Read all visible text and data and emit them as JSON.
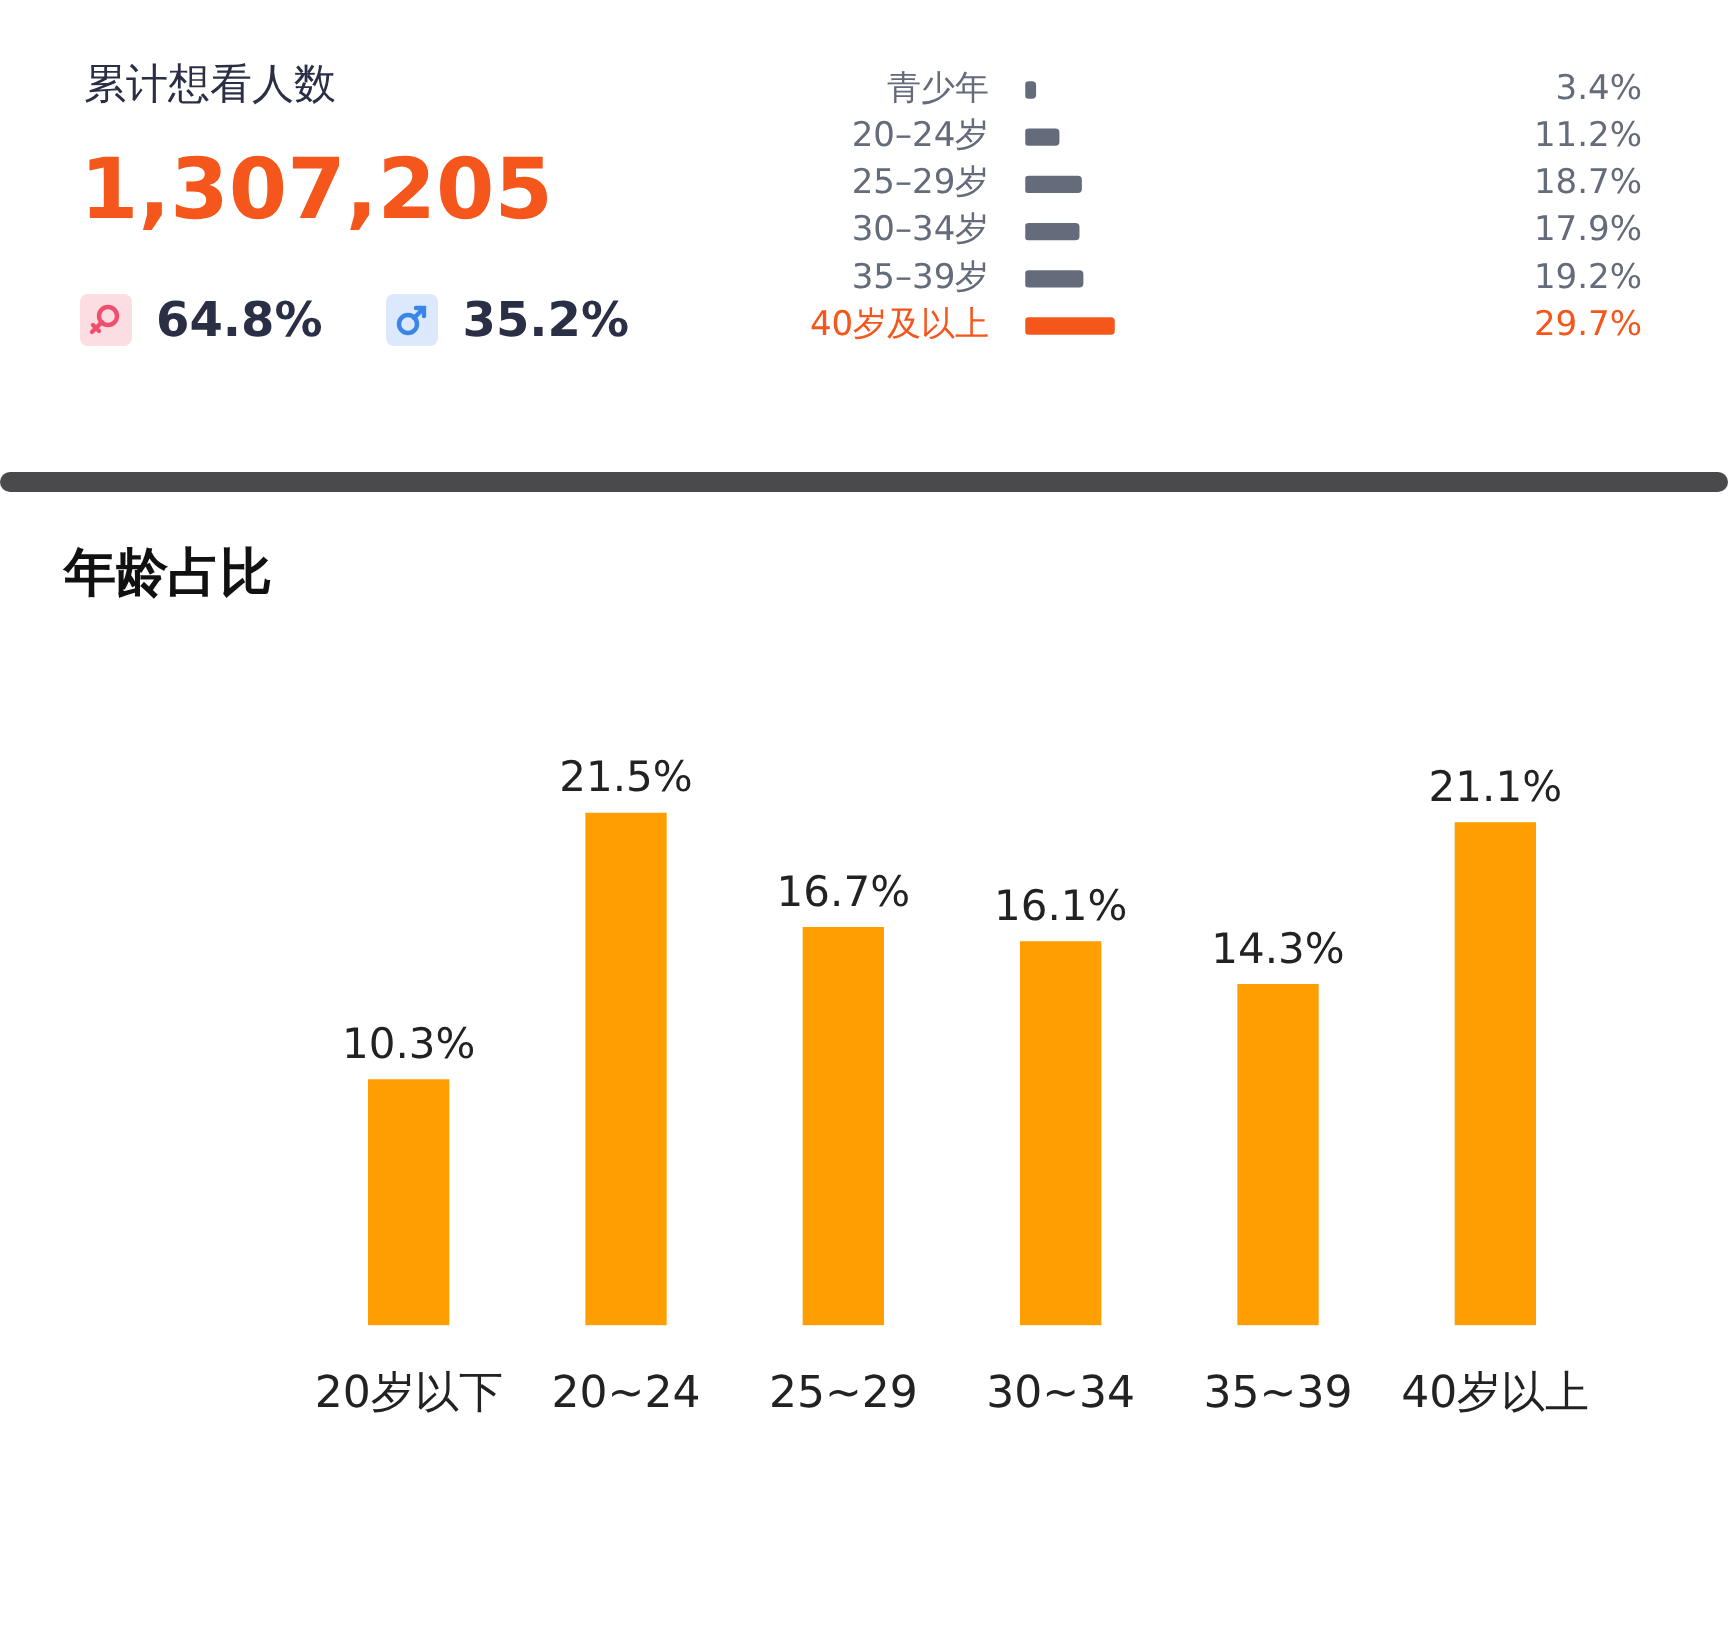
{
  "chart_data": [
    {
      "type": "other",
      "title": "累计想看人数",
      "annotations": [
        "1,307,205",
        "64.8%",
        "35.2%"
      ]
    },
    {
      "type": "bar",
      "orientation": "horizontal",
      "categories": [
        "青少年",
        "20–24岁",
        "25–29岁",
        "30–34岁",
        "35–39岁",
        "40岁及以上"
      ],
      "values": [
        3.4,
        11.2,
        18.7,
        17.9,
        19.2,
        29.7
      ],
      "colors": [
        "#646b7a",
        "#646b7a",
        "#646b7a",
        "#646b7a",
        "#646b7a",
        "#f4561c"
      ],
      "tick_labels": "y",
      "value_labels": [
        "3.4%",
        "11.2%",
        "18.7%",
        "17.9%",
        "19.2%",
        "29.7%"
      ]
    },
    {
      "type": "bar",
      "title": "年龄占比",
      "categories": [
        "20岁以下",
        "20~24",
        "25~29",
        "30~34",
        "35~39",
        "40岁以上"
      ],
      "values": [
        10.3,
        21.5,
        16.7,
        16.1,
        14.3,
        21.1
      ],
      "color": "#ff9e00",
      "value_labels": [
        "10.3%",
        "21.5%",
        "16.7%",
        "16.1%",
        "14.3%",
        "21.1%"
      ]
    }
  ]
}
